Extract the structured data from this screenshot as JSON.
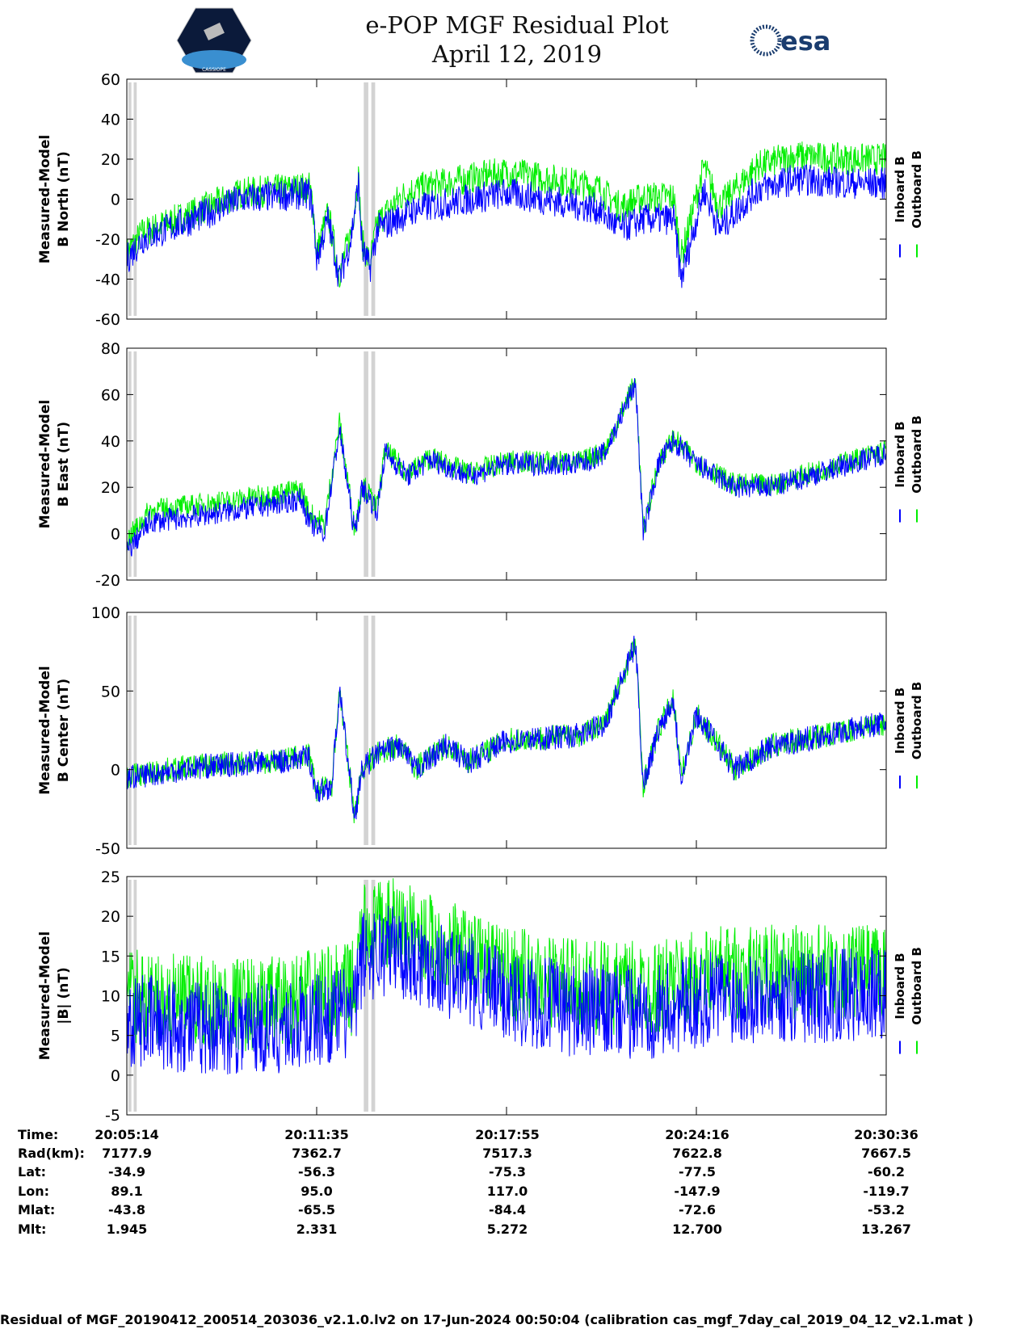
{
  "header": {
    "title": "e-POP MGF Residual Plot",
    "date": "April 12, 2019",
    "logo_left": "CASSIOPE",
    "logo_right": "esa"
  },
  "colors": {
    "inboard": "#0000ff",
    "outboard": "#00ee00",
    "gap": "#d3d3d3"
  },
  "chart_data": [
    {
      "type": "line",
      "ylabel": [
        "Measured-Model",
        "B North (nT)"
      ],
      "ylim": [
        -60,
        60
      ],
      "yticks": [
        60,
        40,
        20,
        0,
        -20,
        -40,
        -60
      ],
      "legend": [
        "Inboard B",
        "Outboard B"
      ],
      "series": [
        {
          "name": "Inboard B",
          "noise": 8,
          "trend": [
            [
              0,
              -30
            ],
            [
              0.02,
              -20
            ],
            [
              0.1,
              -8
            ],
            [
              0.15,
              0
            ],
            [
              0.24,
              3
            ],
            [
              0.245,
              -5
            ],
            [
              0.25,
              -30
            ],
            [
              0.265,
              -10
            ],
            [
              0.28,
              -40
            ],
            [
              0.295,
              -20
            ],
            [
              0.305,
              8
            ],
            [
              0.31,
              -25
            ],
            [
              0.32,
              -35
            ],
            [
              0.33,
              -15
            ],
            [
              0.38,
              -5
            ],
            [
              0.45,
              0
            ],
            [
              0.5,
              3
            ],
            [
              0.55,
              0
            ],
            [
              0.62,
              -5
            ],
            [
              0.65,
              -15
            ],
            [
              0.68,
              -10
            ],
            [
              0.72,
              -10
            ],
            [
              0.73,
              -40
            ],
            [
              0.76,
              5
            ],
            [
              0.78,
              -15
            ],
            [
              0.83,
              5
            ],
            [
              0.88,
              10
            ],
            [
              0.95,
              8
            ],
            [
              1,
              8
            ]
          ]
        },
        {
          "name": "Outboard B",
          "noise": 8,
          "offset": [
            [
              0,
              3
            ],
            [
              0.33,
              3
            ],
            [
              0.36,
              10
            ],
            [
              1,
              12
            ]
          ]
        }
      ]
    },
    {
      "type": "line",
      "ylabel": [
        "Measured-Model",
        "B East (nT)"
      ],
      "ylim": [
        -20,
        80
      ],
      "yticks": [
        80,
        60,
        40,
        20,
        0,
        -20
      ],
      "legend": [
        "Inboard B",
        "Outboard B"
      ],
      "series": [
        {
          "name": "Inboard B",
          "noise": 5,
          "trend": [
            [
              0,
              -8
            ],
            [
              0.03,
              5
            ],
            [
              0.1,
              8
            ],
            [
              0.2,
              13
            ],
            [
              0.23,
              15
            ],
            [
              0.24,
              5
            ],
            [
              0.26,
              0
            ],
            [
              0.28,
              45
            ],
            [
              0.3,
              0
            ],
            [
              0.31,
              20
            ],
            [
              0.33,
              10
            ],
            [
              0.34,
              35
            ],
            [
              0.37,
              25
            ],
            [
              0.4,
              32
            ],
            [
              0.45,
              25
            ],
            [
              0.5,
              30
            ],
            [
              0.6,
              30
            ],
            [
              0.63,
              35
            ],
            [
              0.65,
              50
            ],
            [
              0.67,
              65
            ],
            [
              0.68,
              0
            ],
            [
              0.7,
              30
            ],
            [
              0.72,
              40
            ],
            [
              0.75,
              30
            ],
            [
              0.8,
              20
            ],
            [
              0.85,
              20
            ],
            [
              0.9,
              25
            ],
            [
              1,
              35
            ]
          ]
        },
        {
          "name": "Outboard B",
          "noise": 5,
          "offset": [
            [
              0,
              5
            ],
            [
              0.25,
              4
            ],
            [
              0.33,
              1
            ],
            [
              1,
              1
            ]
          ]
        }
      ]
    },
    {
      "type": "line",
      "ylabel": [
        "Measured-Model",
        "B Center (nT)"
      ],
      "ylim": [
        -50,
        100
      ],
      "yticks": [
        100,
        50,
        0,
        -50
      ],
      "legend": [
        "Inboard B",
        "Outboard B"
      ],
      "series": [
        {
          "name": "Inboard B",
          "noise": 8,
          "trend": [
            [
              0,
              -5
            ],
            [
              0.1,
              2
            ],
            [
              0.2,
              5
            ],
            [
              0.24,
              8
            ],
            [
              0.25,
              -15
            ],
            [
              0.27,
              -10
            ],
            [
              0.28,
              50
            ],
            [
              0.3,
              -30
            ],
            [
              0.31,
              0
            ],
            [
              0.33,
              10
            ],
            [
              0.36,
              15
            ],
            [
              0.38,
              0
            ],
            [
              0.42,
              15
            ],
            [
              0.45,
              5
            ],
            [
              0.5,
              18
            ],
            [
              0.6,
              22
            ],
            [
              0.63,
              30
            ],
            [
              0.67,
              80
            ],
            [
              0.68,
              -10
            ],
            [
              0.7,
              25
            ],
            [
              0.72,
              45
            ],
            [
              0.73,
              -5
            ],
            [
              0.75,
              35
            ],
            [
              0.78,
              15
            ],
            [
              0.8,
              0
            ],
            [
              0.85,
              15
            ],
            [
              0.9,
              20
            ],
            [
              1,
              30
            ]
          ]
        },
        {
          "name": "Outboard B",
          "noise": 8,
          "offset": [
            [
              0,
              1
            ],
            [
              1,
              0
            ]
          ]
        }
      ]
    },
    {
      "type": "line",
      "ylabel": [
        "Measured-Model",
        "|B| (nT)"
      ],
      "ylim": [
        -5,
        25
      ],
      "yticks": [
        25,
        20,
        15,
        10,
        5,
        0,
        -5
      ],
      "legend": [
        "Inboard B",
        "Outboard B"
      ],
      "series": [
        {
          "name": "Inboard B",
          "noise": 6,
          "trend": [
            [
              0,
              7
            ],
            [
              0.1,
              6
            ],
            [
              0.2,
              6
            ],
            [
              0.3,
              8
            ],
            [
              0.31,
              15
            ],
            [
              0.35,
              16
            ],
            [
              0.4,
              14
            ],
            [
              0.5,
              10
            ],
            [
              0.6,
              8
            ],
            [
              0.7,
              8
            ],
            [
              0.78,
              10
            ],
            [
              0.85,
              10
            ],
            [
              1,
              10
            ]
          ]
        },
        {
          "name": "Outboard B",
          "noise": 6,
          "offset": [
            [
              0,
              3
            ],
            [
              1,
              3
            ]
          ]
        }
      ]
    }
  ],
  "data_gaps": [
    [
      0.002,
      0.006
    ],
    [
      0.009,
      0.013
    ],
    [
      0.312,
      0.318
    ],
    [
      0.322,
      0.327
    ]
  ],
  "table": {
    "labels": [
      "Time:",
      "Rad(km):",
      "Lat:",
      "Lon:",
      "Mlat:",
      "Mlt:"
    ],
    "columns": [
      [
        "20:05:14",
        "7177.9",
        "-34.9",
        "89.1",
        "-43.8",
        "1.945"
      ],
      [
        "20:11:35",
        "7362.7",
        "-56.3",
        "95.0",
        "-65.5",
        "2.331"
      ],
      [
        "20:17:55",
        "7517.3",
        "-75.3",
        "117.0",
        "-84.4",
        "5.272"
      ],
      [
        "20:24:16",
        "7622.8",
        "-77.5",
        "-147.9",
        "-72.6",
        "12.700"
      ],
      [
        "20:30:36",
        "7667.5",
        "-60.2",
        "-119.7",
        "-53.2",
        "13.267"
      ]
    ]
  },
  "footer": "Residual of MGF_20190412_200514_203036_v2.1.0.lv2 on 17-Jun-2024 00:50:04 (calibration cas_mgf_7day_cal_2019_04_12_v2.1.mat )"
}
